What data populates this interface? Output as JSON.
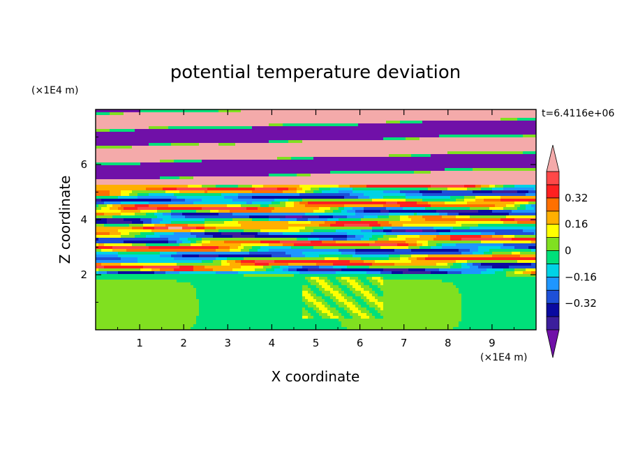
{
  "chart_data": {
    "type": "heatmap",
    "title": "potential temperature deviation",
    "xlabel": "X coordinate",
    "ylabel": "Z coordinate",
    "x_unit": "(×1E4 m)",
    "y_unit": "(×1E4 m)",
    "time_label": "t=6.4116e+06",
    "xlim": [
      0,
      10
    ],
    "ylim": [
      0,
      8
    ],
    "x_ticks": [
      "1",
      "2",
      "3",
      "4",
      "5",
      "6",
      "7",
      "8",
      "9"
    ],
    "y_ticks": [
      "2",
      "4",
      "6"
    ],
    "colorbar": {
      "levels": [
        -0.48,
        -0.4,
        -0.32,
        -0.24,
        -0.16,
        -0.08,
        0,
        0.08,
        0.16,
        0.24,
        0.32,
        0.4,
        0.48
      ],
      "colors": [
        "#7010a8",
        "#3c1e9c",
        "#0a0aa0",
        "#1e50d8",
        "#1e96ff",
        "#00d2e6",
        "#00e07a",
        "#80e020",
        "#ffff00",
        "#ffb000",
        "#ff7000",
        "#ff2020",
        "#ff4848",
        "#f4aaaa"
      ],
      "labels": [
        "0.32",
        "0.16",
        "0",
        "-0.16",
        "-0.32"
      ]
    }
  }
}
